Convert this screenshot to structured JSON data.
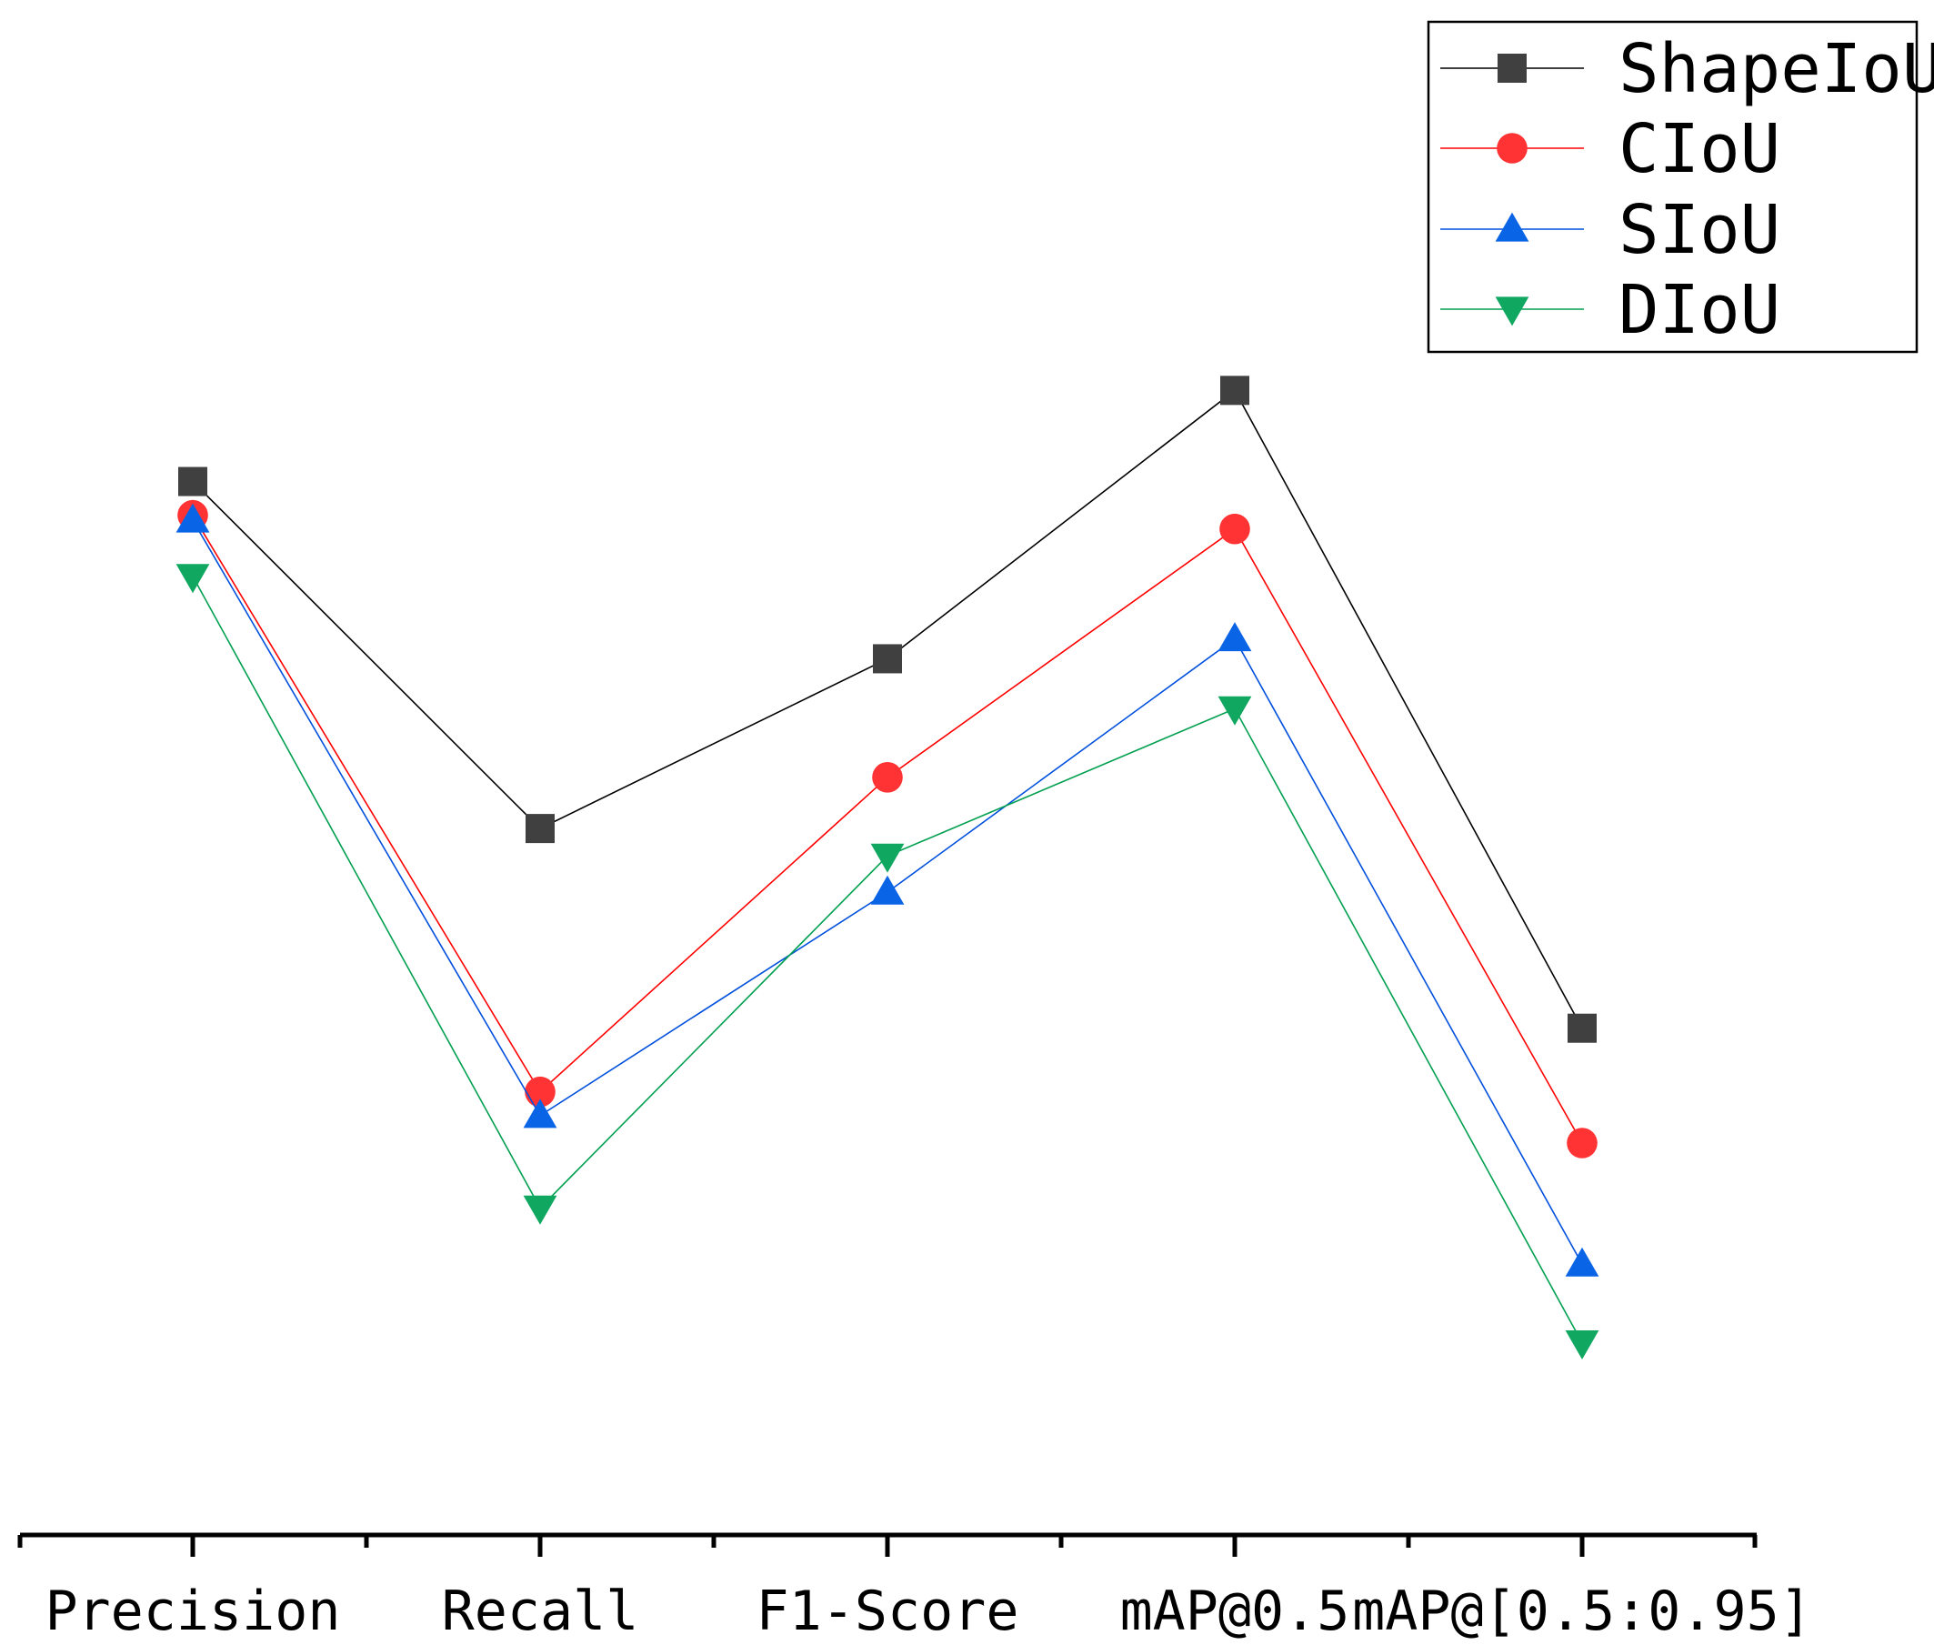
{
  "chart_data": {
    "type": "line",
    "title": "",
    "xlabel": "",
    "ylabel": "",
    "categories": [
      "Precision",
      "Recall",
      "F1-Score",
      "mAP@0.5",
      "mAP@[0.5:0.95]"
    ],
    "ylim": [
      0,
      100
    ],
    "grid": false,
    "y_axis_visible": false,
    "legend_position": "top-right",
    "series": [
      {
        "name": "ShapeIoU",
        "marker": "square",
        "color": "#000000",
        "marker_color": "#404040",
        "values": [
          84.4,
          56.6,
          70.2,
          91.7,
          40.6
        ]
      },
      {
        "name": "CIoU",
        "marker": "circle",
        "color": "#ff0000",
        "marker_color": "#ff3333",
        "values": [
          81.7,
          35.5,
          60.7,
          80.6,
          31.4
        ]
      },
      {
        "name": "SIoU",
        "marker": "triangle-up",
        "color": "#0050dd",
        "marker_color": "#0a64e6",
        "values": [
          81.3,
          33.6,
          51.5,
          71.8,
          21.7
        ]
      },
      {
        "name": "DIoU",
        "marker": "triangle-down",
        "color": "#00a050",
        "marker_color": "#10a860",
        "values": [
          76.8,
          26.2,
          54.4,
          66.2,
          15.4
        ]
      }
    ]
  }
}
